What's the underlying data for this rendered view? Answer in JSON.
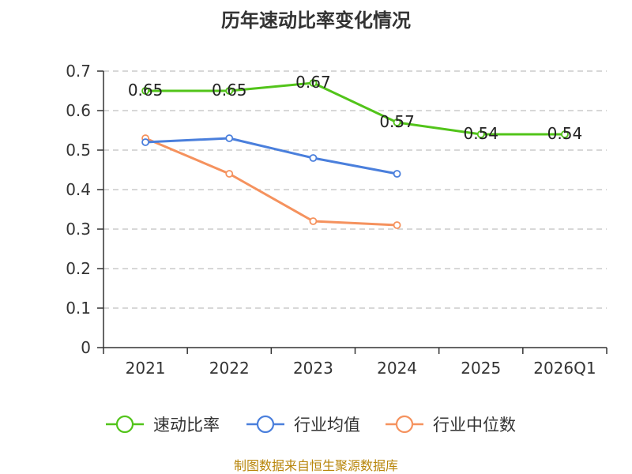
{
  "chart_data": {
    "type": "line",
    "title": "历年速动比率变化情况",
    "categories": [
      "2021",
      "2022",
      "2023",
      "2024",
      "2025",
      "2026Q1"
    ],
    "ylim": [
      0,
      0.7
    ],
    "yticks": [
      "0",
      "0.1",
      "0.2",
      "0.3",
      "0.4",
      "0.5",
      "0.6",
      "0.7"
    ],
    "grid": true,
    "legend_position": "bottom",
    "series": [
      {
        "name": "速动比率",
        "color": "#52c41a",
        "values": [
          0.65,
          0.65,
          0.67,
          0.57,
          0.54,
          0.54
        ],
        "labels": [
          "0.65",
          "0.65",
          "0.67",
          "0.57",
          "0.54",
          "0.54"
        ]
      },
      {
        "name": "行业均值",
        "color": "#4a7fdc",
        "values": [
          0.52,
          0.53,
          0.48,
          0.44,
          null,
          null
        ]
      },
      {
        "name": "行业中位数",
        "color": "#f5925e",
        "values": [
          0.53,
          0.44,
          0.32,
          0.31,
          null,
          null
        ]
      }
    ]
  },
  "footer": {
    "source": "制图数据来自恒生聚源数据库"
  }
}
